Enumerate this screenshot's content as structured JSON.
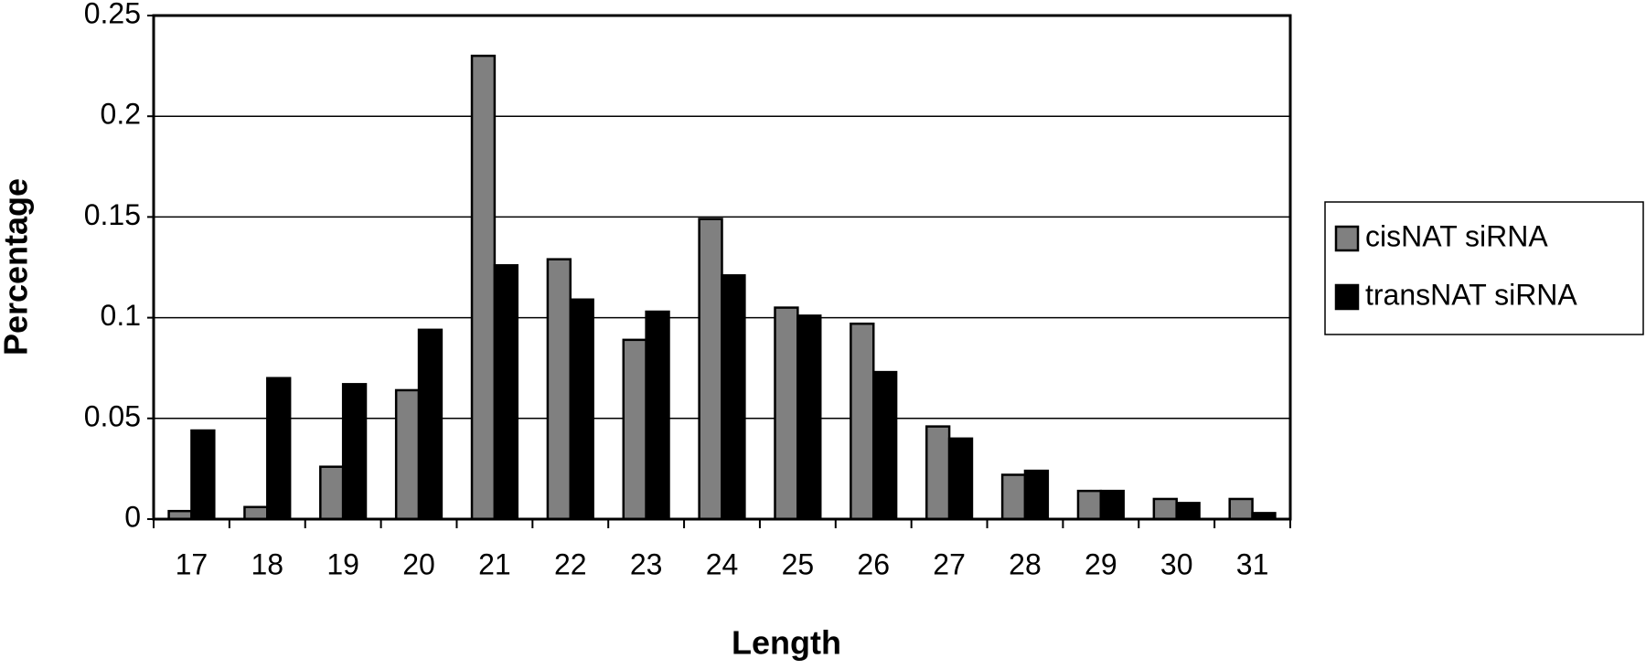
{
  "chart_data": {
    "type": "bar",
    "x_label": "Length",
    "y_label": "Percentage",
    "categories": [
      "17",
      "18",
      "19",
      "20",
      "21",
      "22",
      "23",
      "24",
      "25",
      "26",
      "27",
      "28",
      "29",
      "30",
      "31"
    ],
    "series": [
      {
        "name": "cisNAT siRNA",
        "color": "#808080",
        "values": [
          0.004,
          0.006,
          0.026,
          0.064,
          0.23,
          0.129,
          0.089,
          0.149,
          0.105,
          0.097,
          0.046,
          0.022,
          0.014,
          0.01,
          0.01
        ]
      },
      {
        "name": "transNAT siRNA",
        "color": "#000000",
        "values": [
          0.044,
          0.07,
          0.067,
          0.094,
          0.126,
          0.109,
          0.103,
          0.121,
          0.101,
          0.073,
          0.04,
          0.024,
          0.014,
          0.008,
          0.003
        ]
      }
    ],
    "ylim": [
      0,
      0.25
    ],
    "yticks": [
      0,
      0.05,
      0.1,
      0.15,
      0.2,
      0.25
    ],
    "grid": true,
    "legend": "right"
  }
}
